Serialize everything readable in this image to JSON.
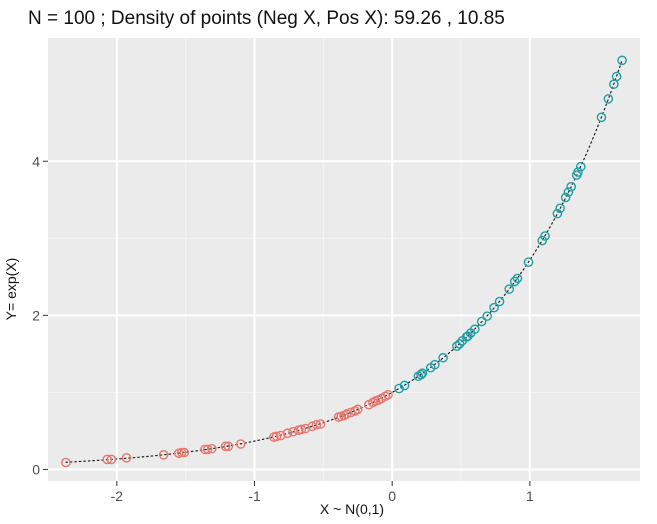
{
  "chart_data": {
    "type": "scatter",
    "title": "N =  100 ;  Density of points (Neg X, Pos X):  59.26 ,  10.85",
    "xlabel": "X ~ N(0,1)",
    "ylabel": "Y= exp(X)",
    "xlim": [
      -2.5,
      1.8
    ],
    "ylim": [
      -0.15,
      5.6
    ],
    "x_ticks": [
      -2,
      -1,
      0,
      1
    ],
    "x_tick_labels": [
      "-2",
      "-1",
      "0",
      "1"
    ],
    "y_ticks": [
      0,
      2,
      4
    ],
    "y_tick_labels": [
      "0",
      "2",
      "4"
    ],
    "grid": true,
    "legend": "none",
    "curve": {
      "type": "dotted",
      "function": "exp(x)",
      "color": "#1f1f1f"
    },
    "colors": {
      "negative": "#e8766d",
      "positive": "#1f9ea3",
      "panel_background": "#ebebeb",
      "grid_major": "#ffffff",
      "grid_minor": "#f5f5f5"
    },
    "series": [
      {
        "color": "#e8766d",
        "x": [
          -2.37,
          -2.07,
          -2.04,
          -1.93,
          -1.66,
          -1.55,
          -1.53,
          -1.51,
          -1.36,
          -1.34,
          -1.31,
          -1.21,
          -1.19,
          -1.1,
          -0.86,
          -0.84,
          -0.81,
          -0.76,
          -0.72,
          -0.68,
          -0.66,
          -0.63,
          -0.58,
          -0.55,
          -0.52,
          -0.39,
          -0.37,
          -0.35,
          -0.33,
          -0.3,
          -0.27,
          -0.25,
          -0.17,
          -0.14,
          -0.12,
          -0.1,
          -0.08,
          -0.05,
          -0.03
        ],
        "y": [
          0.09,
          0.13,
          0.13,
          0.15,
          0.19,
          0.21,
          0.22,
          0.22,
          0.26,
          0.26,
          0.27,
          0.3,
          0.3,
          0.33,
          0.42,
          0.43,
          0.44,
          0.47,
          0.49,
          0.51,
          0.52,
          0.53,
          0.56,
          0.58,
          0.59,
          0.68,
          0.69,
          0.7,
          0.72,
          0.74,
          0.76,
          0.78,
          0.84,
          0.87,
          0.89,
          0.9,
          0.92,
          0.95,
          0.97
        ]
      },
      {
        "color": "#1f9ea3",
        "x": [
          0.05,
          0.09,
          0.19,
          0.21,
          0.22,
          0.28,
          0.31,
          0.37,
          0.47,
          0.49,
          0.51,
          0.54,
          0.55,
          0.57,
          0.6,
          0.65,
          0.69,
          0.74,
          0.78,
          0.85,
          0.89,
          0.91,
          0.99,
          1.09,
          1.11,
          1.2,
          1.22,
          1.26,
          1.28,
          1.3,
          1.34,
          1.35,
          1.37,
          1.52,
          1.57,
          1.61,
          1.63,
          1.67
        ],
        "y": [
          1.05,
          1.09,
          1.21,
          1.23,
          1.25,
          1.32,
          1.36,
          1.45,
          1.6,
          1.63,
          1.67,
          1.72,
          1.73,
          1.77,
          1.82,
          1.92,
          1.99,
          2.1,
          2.18,
          2.34,
          2.44,
          2.48,
          2.69,
          2.97,
          3.03,
          3.32,
          3.39,
          3.53,
          3.6,
          3.67,
          3.82,
          3.86,
          3.93,
          4.57,
          4.81,
          5.0,
          5.1,
          5.31
        ]
      }
    ]
  }
}
